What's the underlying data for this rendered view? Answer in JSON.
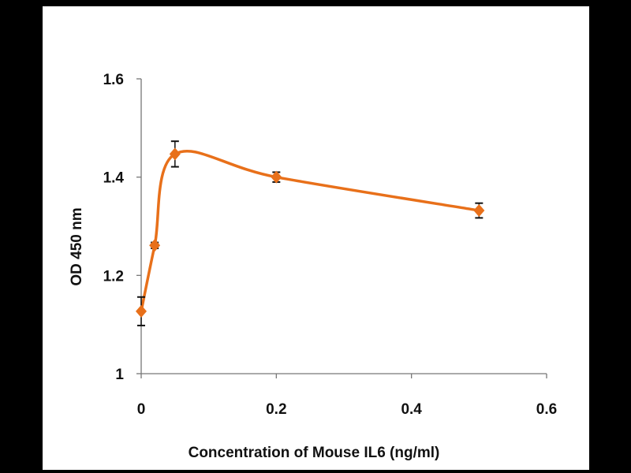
{
  "chart_data": {
    "type": "line",
    "title": "",
    "xlabel": "Concentration of Mouse IL6 (ng/ml)",
    "ylabel": "OD 450 nm",
    "xlim": [
      0,
      0.6
    ],
    "ylim": [
      1,
      1.6
    ],
    "xticks": [
      "0",
      "0.2",
      "0.4",
      "0.6"
    ],
    "xtick_values": [
      0,
      0.2,
      0.4,
      0.6
    ],
    "yticks": [
      "1",
      "1.2",
      "1.4",
      "1.6"
    ],
    "ytick_values": [
      1,
      1.2,
      1.4,
      1.6
    ],
    "grid": false,
    "series": [
      {
        "name": "OD 450 nm",
        "color": "#E8701A",
        "marker": "diamond",
        "smooth": true,
        "x": [
          0,
          0.02,
          0.05,
          0.2,
          0.5
        ],
        "y": [
          1.127,
          1.261,
          1.447,
          1.4,
          1.332
        ],
        "error": [
          0.029,
          0.006,
          0.026,
          0.01,
          0.015
        ]
      }
    ]
  }
}
